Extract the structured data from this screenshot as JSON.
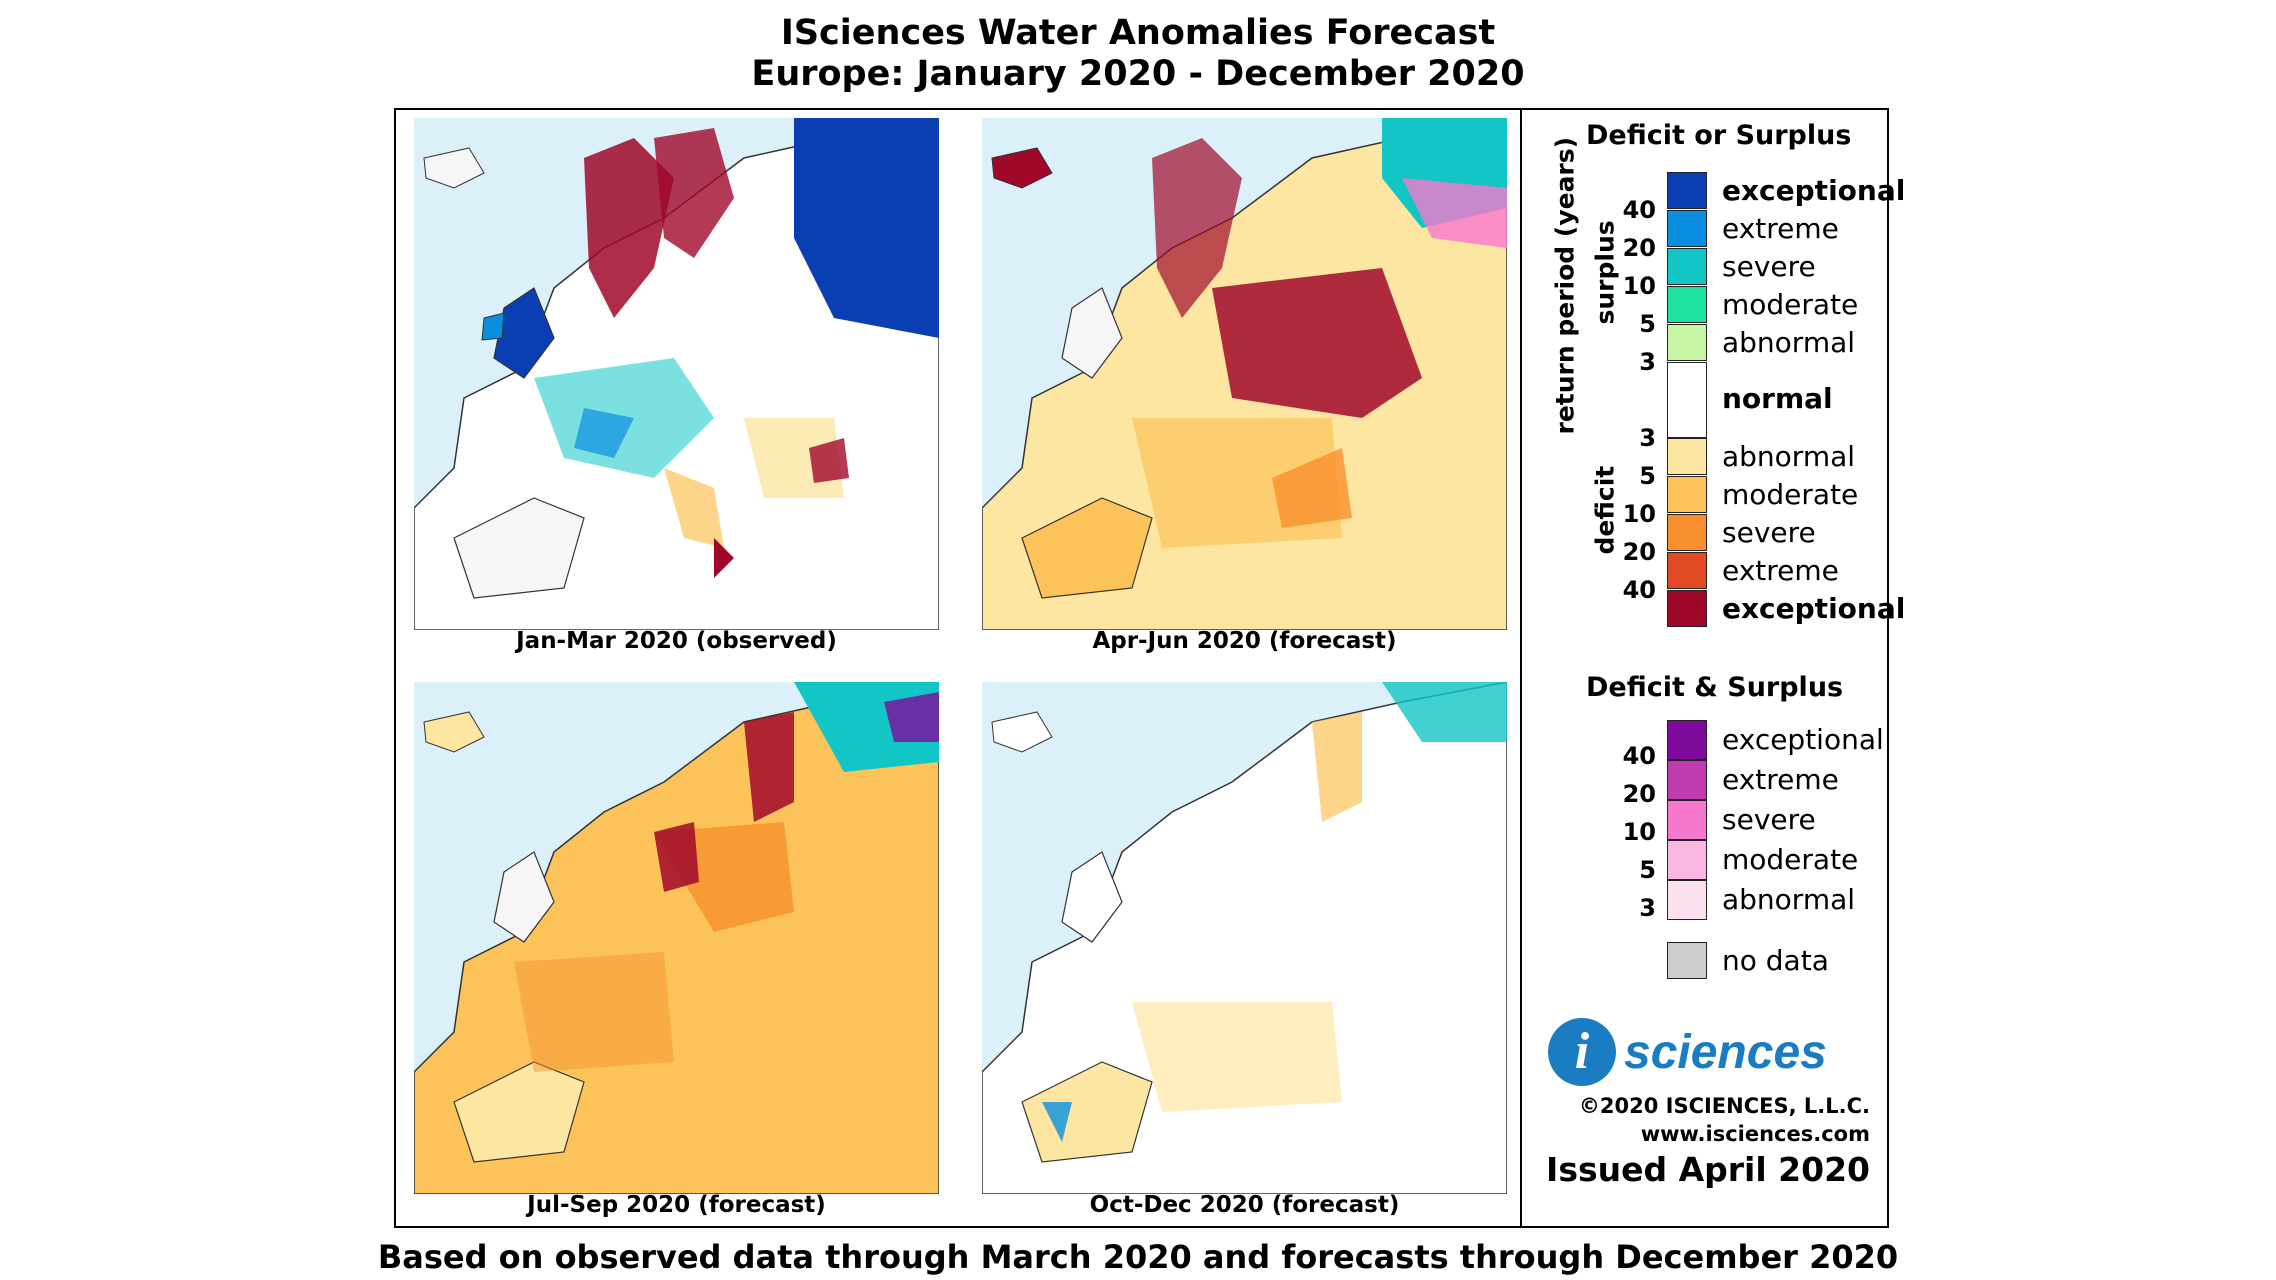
{
  "header": {
    "title": "ISciences Water Anomalies Forecast",
    "subtitle": "Europe: January 2020 - December 2020"
  },
  "maps": [
    {
      "caption": "Jan-Mar 2020 (observed)"
    },
    {
      "caption": "Apr-Jun 2020 (forecast)"
    },
    {
      "caption": "Jul-Sep 2020 (forecast)"
    },
    {
      "caption": "Oct-Dec 2020 (forecast)"
    }
  ],
  "legend": {
    "section1_title": "Deficit or Surplus",
    "axis_label": "return period (years)",
    "surplus_label": "surplus",
    "deficit_label": "deficit",
    "surplus": [
      {
        "label": "exceptional",
        "color": "#0a3fb4"
      },
      {
        "label": "extreme",
        "color": "#0a8fe0"
      },
      {
        "label": "severe",
        "color": "#12c6c6"
      },
      {
        "label": "moderate",
        "color": "#1ee2a0"
      },
      {
        "label": "abnormal",
        "color": "#c8f5a4"
      }
    ],
    "surplus_numbers": [
      "40",
      "20",
      "10",
      "5",
      "3"
    ],
    "normal_label": "normal",
    "deficit_numbers": [
      "3",
      "5",
      "10",
      "20",
      "40"
    ],
    "deficit": [
      {
        "label": "abnormal",
        "color": "#fde6a2"
      },
      {
        "label": "moderate",
        "color": "#fbc35a"
      },
      {
        "label": "severe",
        "color": "#f7902c"
      },
      {
        "label": "extreme",
        "color": "#e04a24"
      },
      {
        "label": "exceptional",
        "color": "#a0082a"
      }
    ],
    "section2_title": "Deficit & Surplus",
    "both": [
      {
        "label": "exceptional",
        "color": "#7e0a9c"
      },
      {
        "label": "extreme",
        "color": "#c03ab0"
      },
      {
        "label": "severe",
        "color": "#f678cc"
      },
      {
        "label": "moderate",
        "color": "#f8b8e2"
      },
      {
        "label": "abnormal",
        "color": "#fbe0f0"
      }
    ],
    "both_numbers": [
      "40",
      "20",
      "10",
      "5",
      "3"
    ],
    "nodata_label": "no data",
    "nodata_color": "#cccccc"
  },
  "branding": {
    "logo_i": "i",
    "logo_text": "sciences",
    "copyright": "©2020 ISCIENCES, L.L.C.",
    "website": "www.isciences.com",
    "issued": "Issued April 2020"
  },
  "footer": "Based on observed data through March 2020 and forecasts through December 2020"
}
